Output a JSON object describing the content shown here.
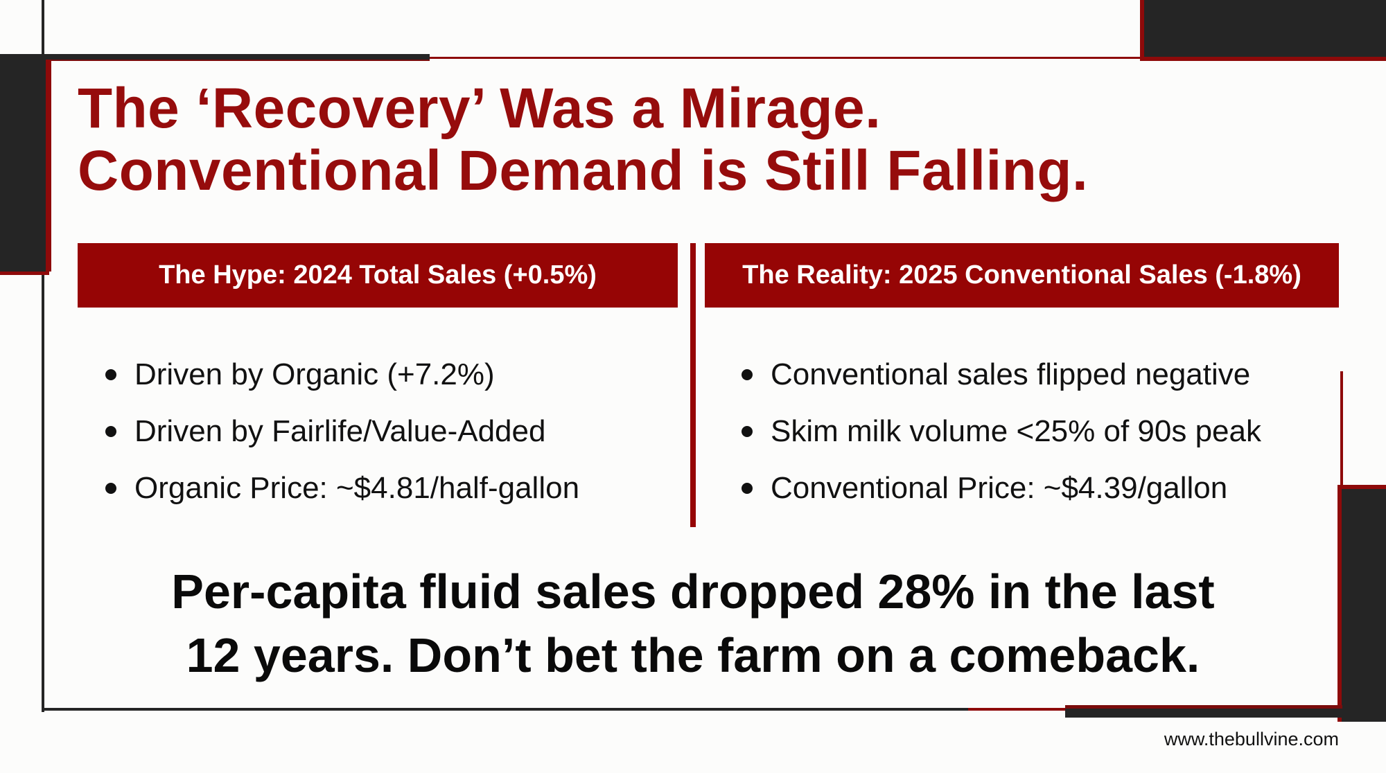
{
  "title": {
    "line1": "The ‘Recovery’ Was a Mirage.",
    "line2": "Conventional Demand is Still Falling."
  },
  "left_panel": {
    "header": "The Hype: 2024 Total Sales (+0.5%)",
    "bullets": [
      "Driven by Organic (+7.2%)",
      "Driven by Fairlife/Value-Added",
      "Organic Price: ~$4.81/half-gallon"
    ]
  },
  "right_panel": {
    "header": "The Reality: 2025 Conventional Sales (-1.8%)",
    "bullets": [
      "Conventional sales flipped negative",
      "Skim milk volume <25% of 90s peak",
      "Conventional Price: ~$4.39/gallon"
    ]
  },
  "conclusion": {
    "line1": "Per-capita fluid sales dropped 28% in the last",
    "line2": "12 years. Don’t bet the farm on a comeback."
  },
  "footer": {
    "url": "www.thebullvine.com"
  },
  "colors": {
    "accent": "#960505",
    "dark": "#252525",
    "text": "#111111"
  }
}
